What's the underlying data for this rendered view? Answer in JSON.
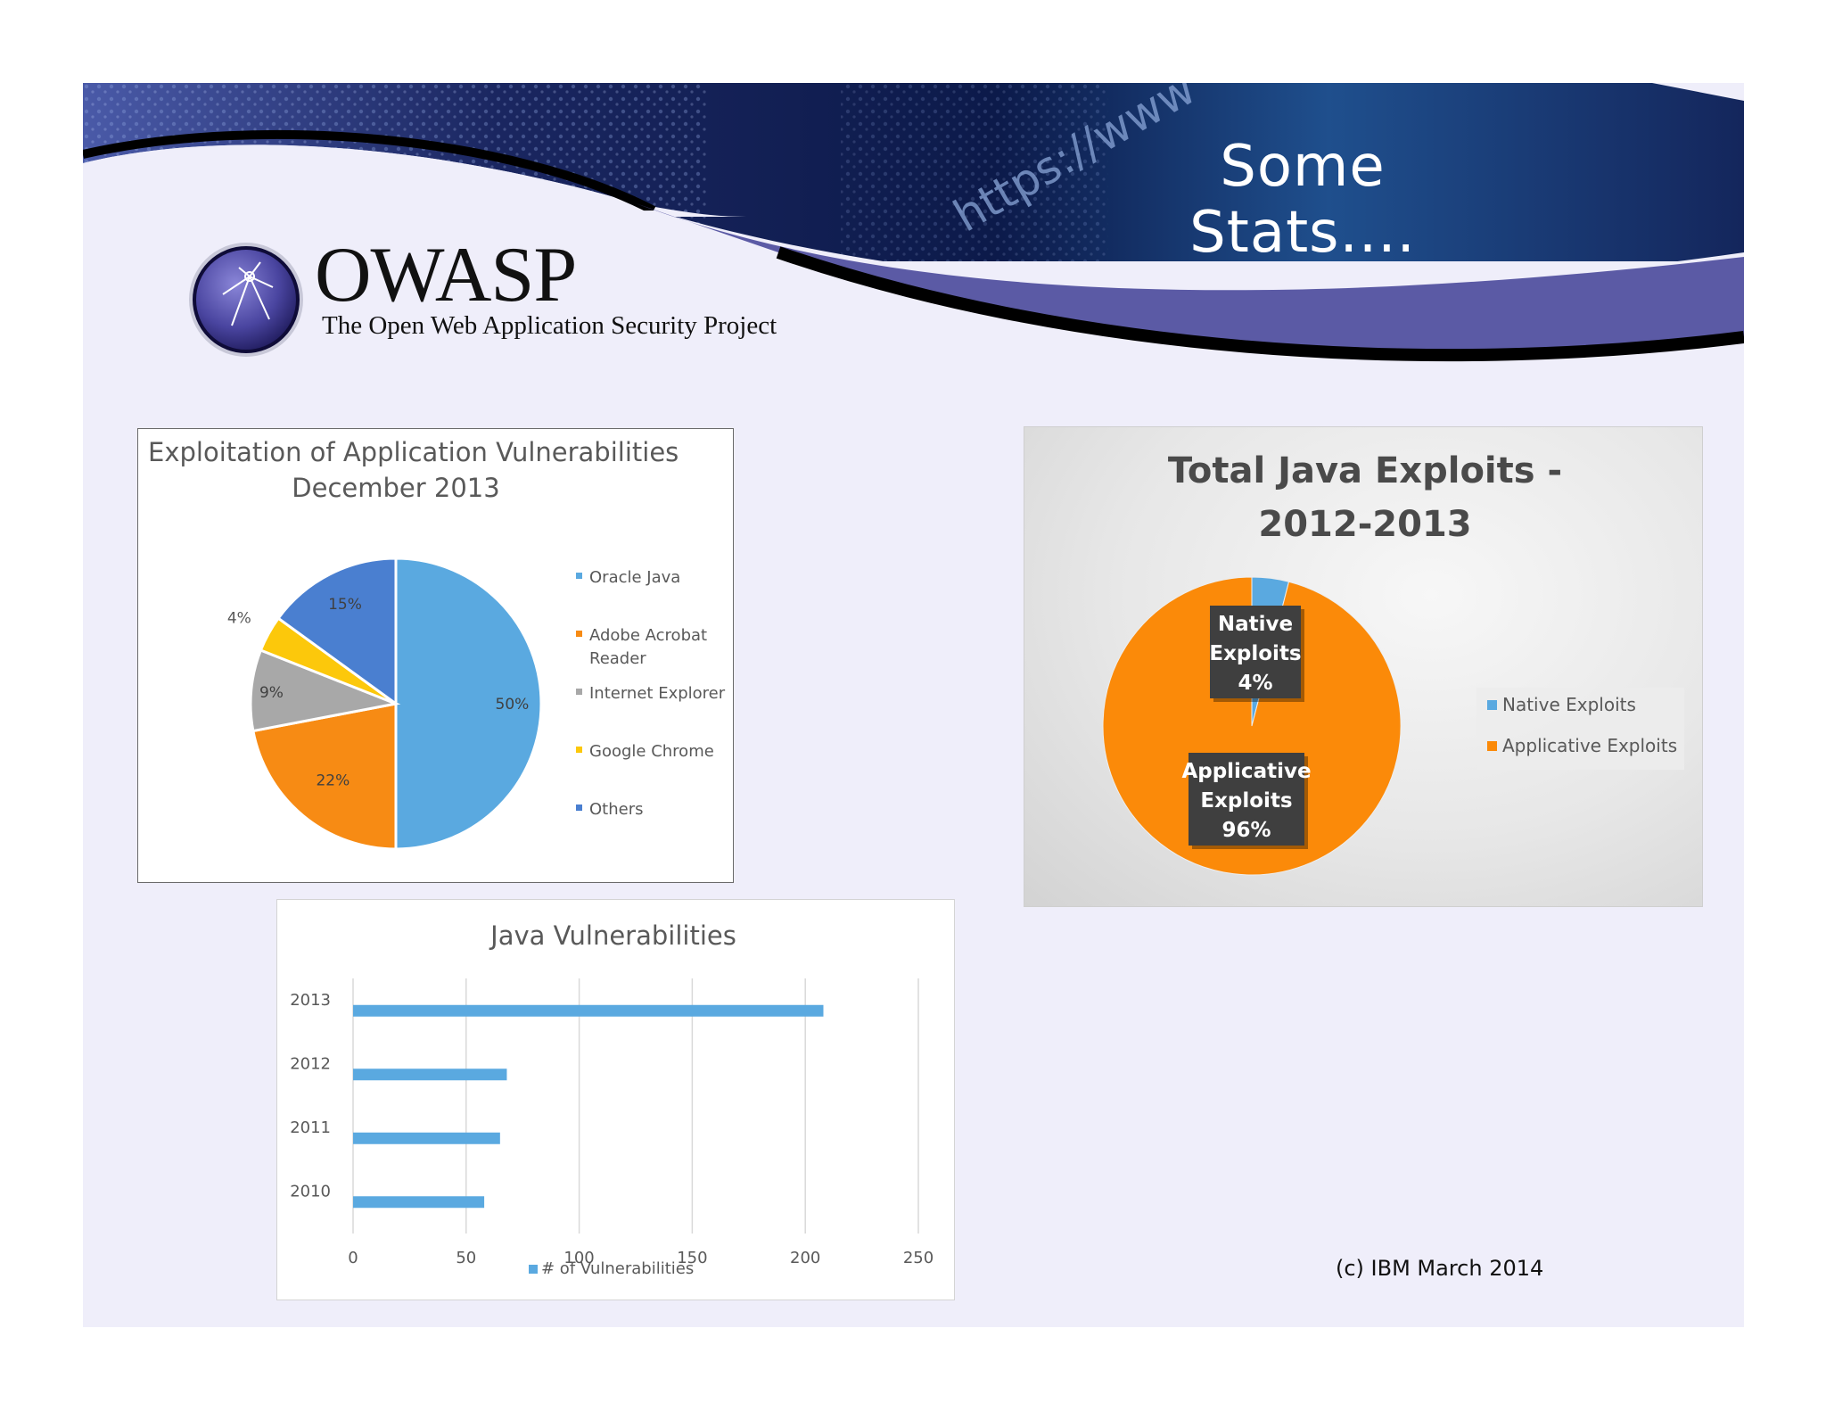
{
  "slide": {
    "title": "Some Stats....",
    "logo": {
      "name": "OWASP",
      "tagline": "The Open Web Application Security Project"
    },
    "banner_text": "https://www",
    "footer": "(c) IBM March 2014"
  },
  "colors": {
    "banner_purple": "#5b5aa5",
    "slide_bg": "#efeefa"
  },
  "chart_data": [
    {
      "type": "pie",
      "title": "Exploitation of Application Vulnerabilities",
      "subtitle": "December 2013",
      "legend_position": "right",
      "categories": [
        "Oracle Java",
        "Adobe Acrobat Reader",
        "Internet Explorer",
        "Google Chrome",
        "Others"
      ],
      "legend_lines": [
        [
          "Oracle Java"
        ],
        [
          "Adobe Acrobat",
          "Reader"
        ],
        [
          "Internet Explorer"
        ],
        [
          "Google Chrome"
        ],
        [
          "Others"
        ]
      ],
      "values": [
        50,
        22,
        9,
        4,
        15
      ],
      "labels": [
        "50%",
        "22%",
        "9%",
        "4%",
        "15%"
      ],
      "colors": [
        "#5aa9e0",
        "#f78b14",
        "#a8a8a8",
        "#fcc80b",
        "#4a7fd0"
      ]
    },
    {
      "type": "pie",
      "title": "Total Java Exploits -",
      "subtitle": "2012-2013",
      "legend_position": "right",
      "categories": [
        "Native Exploits",
        "Applicative Exploits"
      ],
      "values": [
        4,
        96
      ],
      "label_lines": [
        [
          "Native",
          "Exploits",
          "4%"
        ],
        [
          "Applicative",
          "Exploits",
          "96%"
        ]
      ],
      "colors": [
        "#5aa9e0",
        "#fb8a09"
      ]
    },
    {
      "type": "bar",
      "orientation": "horizontal",
      "title": "Java Vulnerabilities",
      "categories": [
        "2013",
        "2012",
        "2011",
        "2010"
      ],
      "series": [
        {
          "name": "# of Vulnerabilities",
          "values": [
            208,
            68,
            65,
            58
          ]
        }
      ],
      "xlim": [
        0,
        250
      ],
      "xticks": [
        "0",
        "50",
        "100",
        "150",
        "200",
        "250"
      ],
      "grid": true,
      "legend_position": "bottom",
      "color": "#5aa9e0"
    }
  ]
}
